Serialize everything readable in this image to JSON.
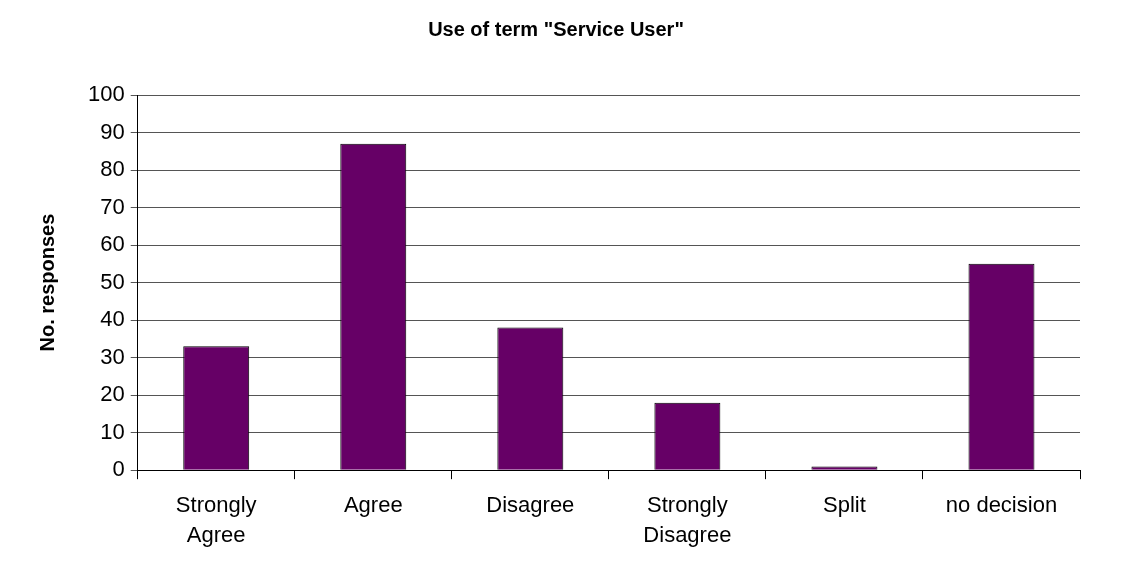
{
  "chart_data": {
    "type": "bar",
    "title": "Use of term \"Service User\"",
    "ylabel": "No. responses",
    "categories": [
      "Strongly Agree",
      "Agree",
      "Disagree",
      "Strongly Disagree",
      "Split",
      "no decision"
    ],
    "values": [
      33,
      87,
      38,
      18,
      1,
      55
    ],
    "color": "#660066",
    "ylim": [
      0,
      100
    ],
    "yticks": [
      0,
      10,
      20,
      30,
      40,
      50,
      60,
      70,
      80,
      90,
      100
    ],
    "grid": "y"
  }
}
